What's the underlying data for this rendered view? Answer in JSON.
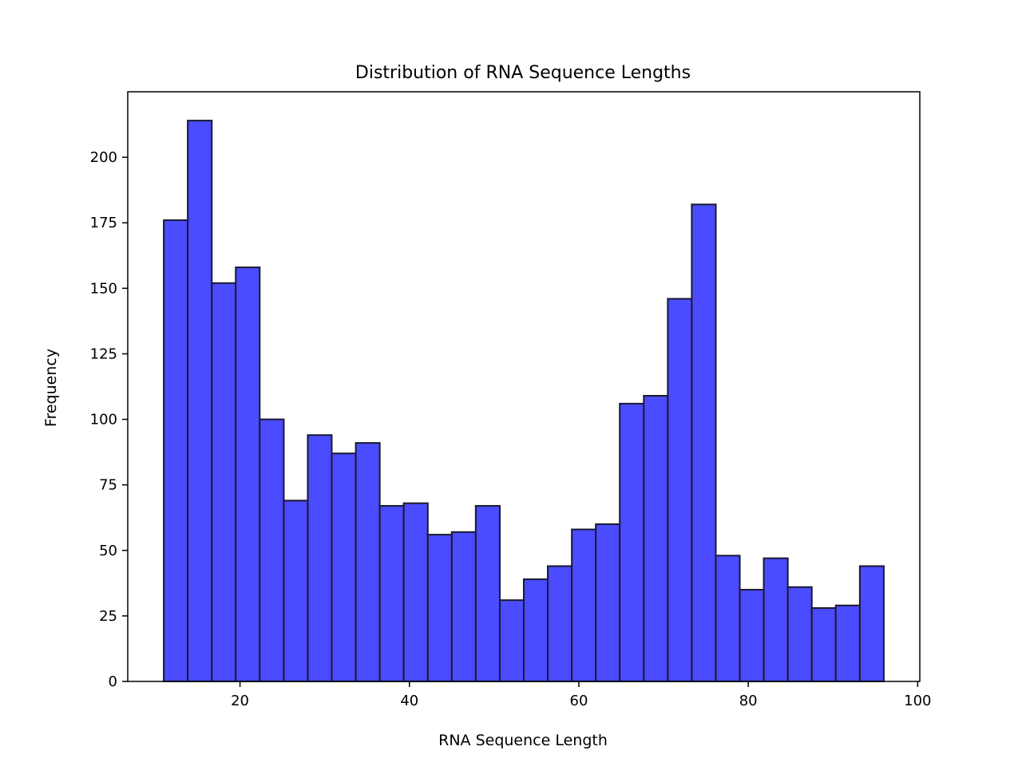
{
  "chart_data": {
    "type": "bar",
    "title": "Distribution of RNA Sequence Lengths",
    "xlabel": "RNA Sequence Length",
    "ylabel": "Frequency",
    "xlim": [
      6.75,
      100.25
    ],
    "ylim": [
      0,
      225
    ],
    "x_ticks": [
      20,
      40,
      60,
      80,
      100
    ],
    "y_ticks": [
      0,
      25,
      50,
      75,
      100,
      125,
      150,
      175,
      200
    ],
    "grid": false,
    "bar_color": "#4b4bff",
    "edge_color": "#1a1a2e",
    "bins": [
      {
        "start": 11.0,
        "end": 13.83,
        "count": 176
      },
      {
        "start": 13.83,
        "end": 16.67,
        "count": 214
      },
      {
        "start": 16.67,
        "end": 19.5,
        "count": 152
      },
      {
        "start": 19.5,
        "end": 22.33,
        "count": 158
      },
      {
        "start": 22.33,
        "end": 25.17,
        "count": 100
      },
      {
        "start": 25.17,
        "end": 28.0,
        "count": 69
      },
      {
        "start": 28.0,
        "end": 30.83,
        "count": 94
      },
      {
        "start": 30.83,
        "end": 33.67,
        "count": 87
      },
      {
        "start": 33.67,
        "end": 36.5,
        "count": 91
      },
      {
        "start": 36.5,
        "end": 39.33,
        "count": 67
      },
      {
        "start": 39.33,
        "end": 42.17,
        "count": 68
      },
      {
        "start": 42.17,
        "end": 45.0,
        "count": 56
      },
      {
        "start": 45.0,
        "end": 47.83,
        "count": 57
      },
      {
        "start": 47.83,
        "end": 50.67,
        "count": 67
      },
      {
        "start": 50.67,
        "end": 53.5,
        "count": 31
      },
      {
        "start": 53.5,
        "end": 56.33,
        "count": 39
      },
      {
        "start": 56.33,
        "end": 59.17,
        "count": 44
      },
      {
        "start": 59.17,
        "end": 62.0,
        "count": 58
      },
      {
        "start": 62.0,
        "end": 64.83,
        "count": 60
      },
      {
        "start": 64.83,
        "end": 67.67,
        "count": 106
      },
      {
        "start": 67.67,
        "end": 70.5,
        "count": 109
      },
      {
        "start": 70.5,
        "end": 73.33,
        "count": 146
      },
      {
        "start": 73.33,
        "end": 76.17,
        "count": 182
      },
      {
        "start": 76.17,
        "end": 79.0,
        "count": 48
      },
      {
        "start": 79.0,
        "end": 81.83,
        "count": 35
      },
      {
        "start": 81.83,
        "end": 84.67,
        "count": 47
      },
      {
        "start": 84.67,
        "end": 87.5,
        "count": 36
      },
      {
        "start": 87.5,
        "end": 90.33,
        "count": 28
      },
      {
        "start": 90.33,
        "end": 93.17,
        "count": 29
      },
      {
        "start": 93.17,
        "end": 96.0,
        "count": 44
      }
    ]
  }
}
